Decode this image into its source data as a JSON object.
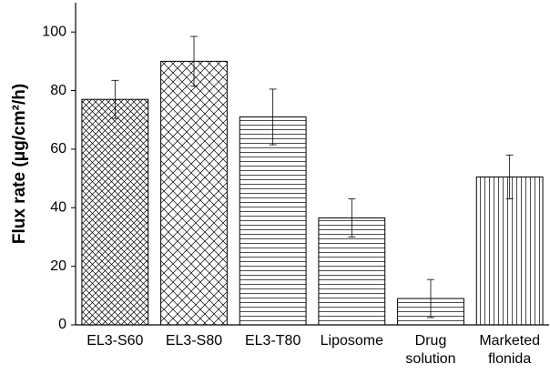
{
  "chart_data": {
    "type": "bar",
    "y_label": "Flux rate (μg/cm²/h)",
    "categories": [
      [
        "EL3-S60"
      ],
      [
        "EL3-S80"
      ],
      [
        "EL3-T80"
      ],
      [
        "Liposome"
      ],
      [
        "Drug",
        "solution"
      ],
      [
        "Marketed",
        "flonida"
      ]
    ],
    "values": [
      77,
      90,
      71,
      36.5,
      9,
      50.5
    ],
    "errors": [
      6.5,
      8.5,
      9.5,
      6.5,
      6.5,
      7.5
    ],
    "hatch": [
      "cross-dense",
      "cross",
      "horizontal",
      "horizontal",
      "horizontal",
      "vertical"
    ],
    "color": "#000000",
    "ylim": [
      0,
      110
    ],
    "yticks": [
      0,
      20,
      40,
      60,
      80,
      100
    ]
  }
}
